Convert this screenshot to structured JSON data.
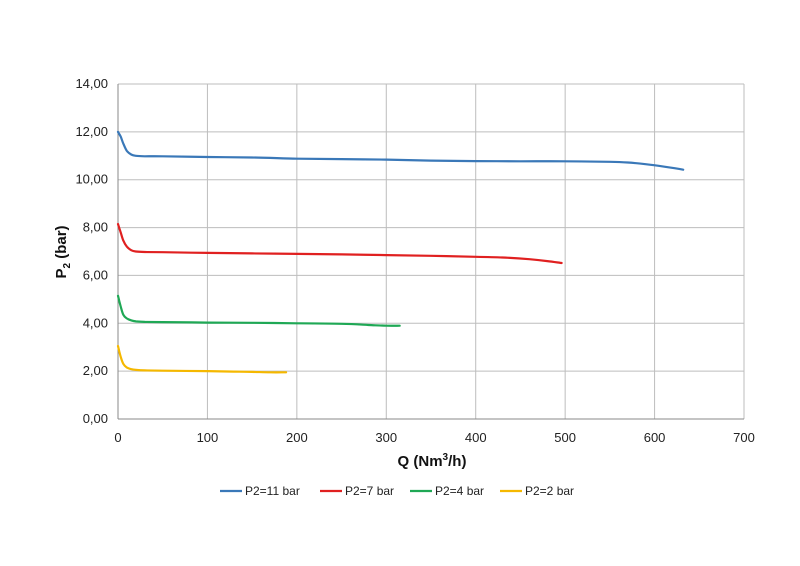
{
  "chart_data": {
    "type": "line",
    "title": "",
    "xlabel": "Q (Nm³/h)",
    "xlabel_parts": {
      "main": "Q (Nm",
      "sup": "3",
      "tail": "/h)"
    },
    "ylabel": "P₂ (bar)",
    "ylabel_parts": {
      "main": "P",
      "sub": "2",
      "tail": " (bar)"
    },
    "xlim": [
      0,
      700
    ],
    "ylim": [
      0,
      14
    ],
    "x_ticks": [
      0,
      100,
      200,
      300,
      400,
      500,
      600,
      700
    ],
    "x_tick_labels": [
      "0",
      "100",
      "200",
      "300",
      "400",
      "500",
      "600",
      "700"
    ],
    "y_ticks": [
      0,
      2,
      4,
      6,
      8,
      10,
      12,
      14
    ],
    "y_tick_labels": [
      "0,00",
      "2,00",
      "4,00",
      "6,00",
      "8,00",
      "10,00",
      "12,00",
      "14,00"
    ],
    "grid": true,
    "legend_position": "bottom",
    "series": [
      {
        "name": "P2=11 bar",
        "color": "#3a78b8",
        "x": [
          0,
          3,
          6,
          10,
          15,
          20,
          30,
          50,
          100,
          150,
          200,
          250,
          300,
          350,
          400,
          450,
          500,
          550,
          570,
          590,
          610,
          632
        ],
        "y": [
          12.0,
          11.8,
          11.5,
          11.2,
          11.05,
          11.0,
          10.98,
          10.98,
          10.95,
          10.93,
          10.88,
          10.86,
          10.84,
          10.8,
          10.78,
          10.77,
          10.77,
          10.75,
          10.72,
          10.65,
          10.55,
          10.42
        ]
      },
      {
        "name": "P2=7 bar",
        "color": "#e02020",
        "x": [
          0,
          3,
          6,
          10,
          15,
          20,
          30,
          50,
          100,
          150,
          200,
          250,
          300,
          350,
          400,
          430,
          460,
          480,
          496
        ],
        "y": [
          8.15,
          7.8,
          7.45,
          7.2,
          7.05,
          7.0,
          6.98,
          6.97,
          6.94,
          6.92,
          6.9,
          6.88,
          6.85,
          6.82,
          6.78,
          6.75,
          6.68,
          6.6,
          6.52
        ]
      },
      {
        "name": "P2=4 bar",
        "color": "#1fa855",
        "x": [
          0,
          3,
          6,
          10,
          15,
          20,
          30,
          50,
          100,
          150,
          200,
          250,
          280,
          300,
          315
        ],
        "y": [
          5.15,
          4.7,
          4.35,
          4.2,
          4.12,
          4.08,
          4.06,
          4.05,
          4.03,
          4.02,
          4.0,
          3.98,
          3.93,
          3.9,
          3.9
        ]
      },
      {
        "name": "P2=2 bar",
        "color": "#f5b800",
        "x": [
          0,
          3,
          6,
          10,
          15,
          20,
          30,
          50,
          100,
          130,
          150,
          170,
          188
        ],
        "y": [
          3.05,
          2.6,
          2.3,
          2.15,
          2.08,
          2.05,
          2.03,
          2.02,
          2.0,
          1.98,
          1.97,
          1.95,
          1.95
        ]
      }
    ]
  }
}
